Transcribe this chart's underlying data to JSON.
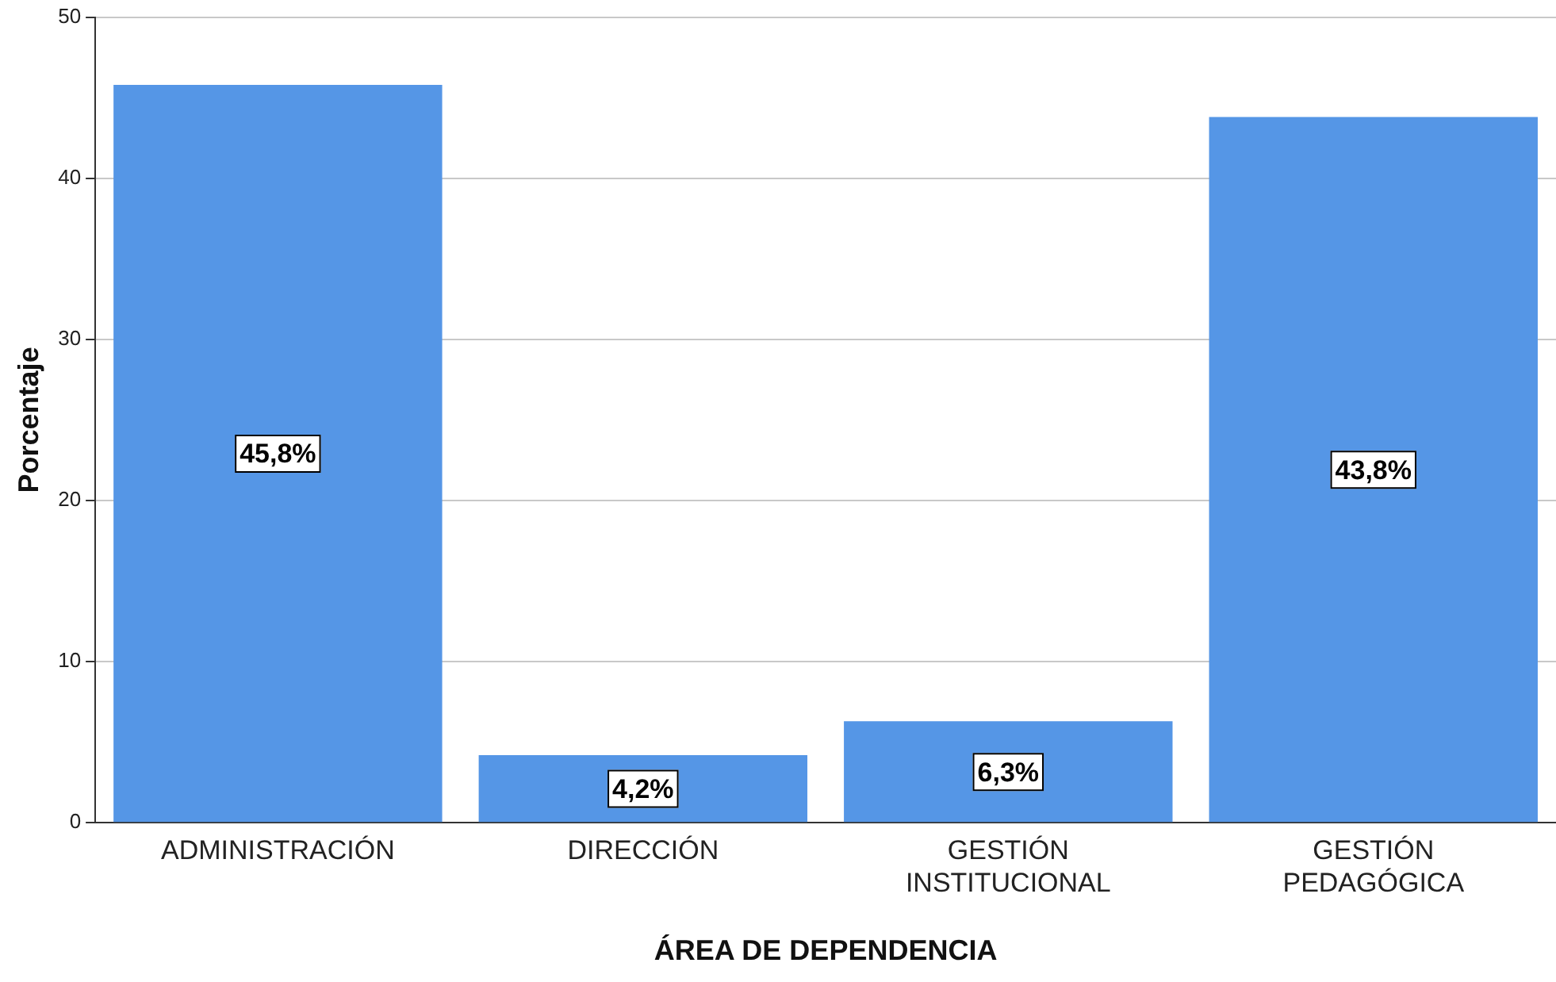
{
  "chart_data": {
    "type": "bar",
    "xlabel": "ÁREA DE DEPENDENCIA",
    "ylabel": "Porcentaje",
    "categories": [
      "ADMINISTRACIÓN",
      "DIRECCIÓN",
      "GESTIÓN INSTITUCIONAL",
      "GESTIÓN PEDAGÓGICA"
    ],
    "values": [
      45.8,
      4.2,
      6.3,
      43.8
    ],
    "value_labels": [
      "45,8%",
      "4,2%",
      "6,3%",
      "43,8%"
    ],
    "color": "#5596e6",
    "ylim": [
      0,
      50
    ],
    "yticks": [
      0,
      10,
      20,
      30,
      40,
      50
    ],
    "grid": "y",
    "legend": false
  }
}
